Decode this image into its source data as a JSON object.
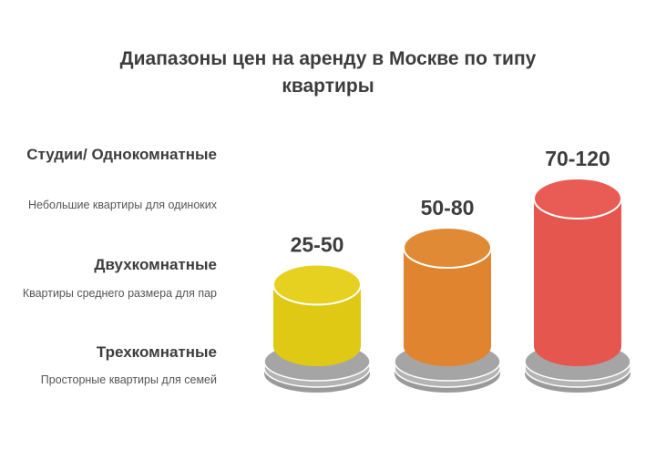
{
  "title": "Диапазоны цен на аренду в Москве по типу квартиры",
  "categories": [
    {
      "name": "Студии/ Однокомнатные",
      "description": "Небольшие квартиры для одиноких"
    },
    {
      "name": "Двухкомнатные",
      "description": "Квартиры среднего размера для пар"
    },
    {
      "name": "Трехкомнатные",
      "description": "Просторные квартиры для семей"
    }
  ],
  "chart_data": {
    "type": "bar",
    "title": "Диапазоны цен на аренду в Москве по типу квартиры",
    "categories": [
      "Студии/ Однокомнатные",
      "Двухкомнатные",
      "Трехкомнатные"
    ],
    "value_labels": [
      "25-50",
      "50-80",
      "70-120"
    ],
    "ranges": [
      [
        25,
        50
      ],
      [
        50,
        80
      ],
      [
        70,
        120
      ]
    ],
    "values": [
      50,
      80,
      120
    ],
    "colors": [
      "#dfc915",
      "#e08430",
      "#e5564f"
    ],
    "top_colors": [
      "#e6d120",
      "#e18a36",
      "#e85c55"
    ],
    "base_color": "#a7a7a7"
  }
}
